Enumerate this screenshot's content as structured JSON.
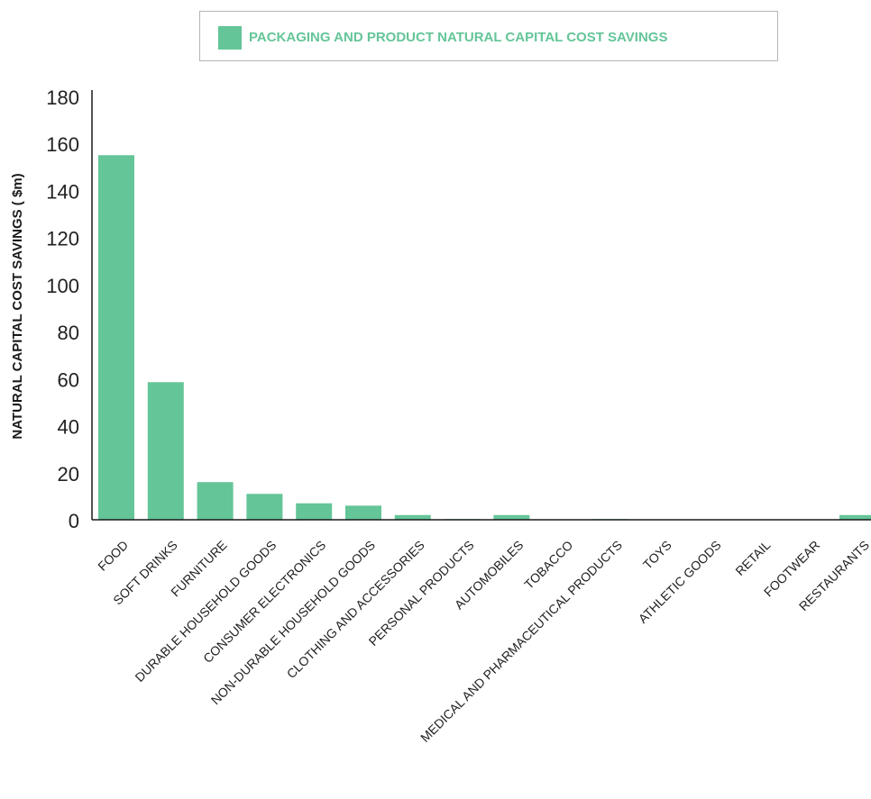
{
  "colors": {
    "bar": "#64c598",
    "axis": "#1a1a1a",
    "text": "#222222",
    "legend_border": "#b5b5b5"
  },
  "chart_data": {
    "type": "bar",
    "title": "",
    "xlabel": "",
    "ylabel": "NATURAL CAPITAL COST SAVINGS ( $m)",
    "ylim": [
      0,
      180
    ],
    "yticks": [
      0,
      20,
      40,
      60,
      80,
      100,
      120,
      140,
      160,
      180
    ],
    "grid": false,
    "legend": {
      "placement": "top",
      "entries": [
        "PACKAGING AND PRODUCT NATURAL CAPITAL COST SAVINGS"
      ]
    },
    "categories": [
      "FOOD",
      "SOFT DRINKS",
      "FURNITURE",
      "DURABLE HOUSEHOLD GOODS",
      "CONSUMER ELECTRONICS",
      "NON-DURABLE HOUSEHOLD GOODS",
      "CLOTHING AND ACCESSORIES",
      "PERSONAL PRODUCTS",
      "AUTOMOBILES",
      "TOBACCO",
      "MEDICAL AND PHARMACEUTICAL PRODUCTS",
      "TOYS",
      "ATHLETIC GOODS",
      "RETAIL",
      "FOOTWEAR",
      "RESTAURANTS"
    ],
    "series": [
      {
        "name": "PACKAGING AND PRODUCT NATURAL CAPITAL COST SAVINGS",
        "values": [
          155,
          58.5,
          16,
          11,
          7,
          6,
          2,
          0.3,
          2,
          0.2,
          0.3,
          0.1,
          0.1,
          0.1,
          0.1,
          2
        ]
      }
    ]
  }
}
